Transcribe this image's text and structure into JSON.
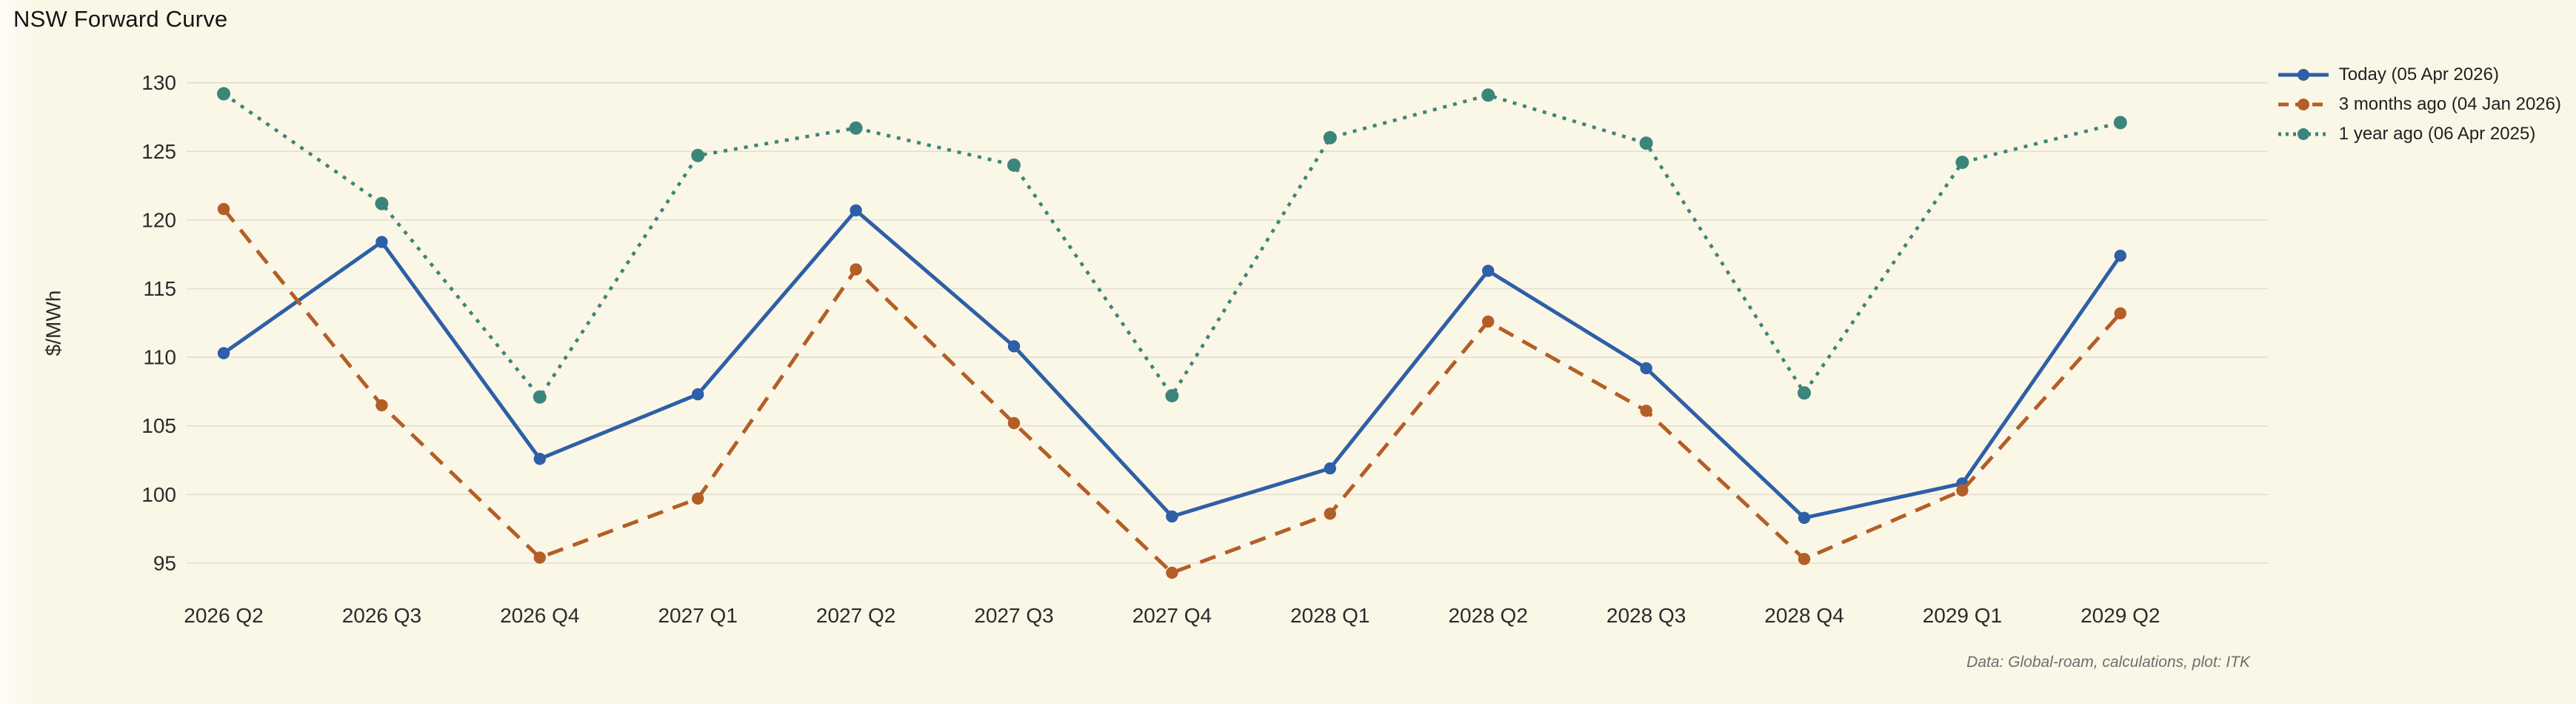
{
  "title": "NSW Forward Curve",
  "caption": "Data: Global-roam, calculations, plot: ITK",
  "colors": {
    "background": "#fbf7e7",
    "gridline": "#e2dfd2",
    "title_text": "#151515",
    "tick_text": "#2b2b2b",
    "caption_text": "#6e6e6e",
    "series_today": "#2e5fa7",
    "series_3mo": "#b45e27",
    "series_1yr": "#3c857a"
  },
  "chart_data": {
    "type": "line",
    "title": "NSW Forward Curve",
    "xlabel": "",
    "ylabel": "$/MWh",
    "ylim": [
      93,
      131
    ],
    "yticks": [
      95,
      100,
      105,
      110,
      115,
      120,
      125,
      130
    ],
    "grid": "horizontal",
    "legend_position": "top-right",
    "categories": [
      "2026 Q2",
      "2026 Q3",
      "2026 Q4",
      "2027 Q1",
      "2027 Q2",
      "2027 Q3",
      "2027 Q4",
      "2028 Q1",
      "2028 Q2",
      "2028 Q3",
      "2028 Q4",
      "2029 Q1",
      "2029 Q2"
    ],
    "series": [
      {
        "name": "Today (05 Apr 2026)",
        "style": "solid",
        "color": "#2e5fa7",
        "values": [
          110.3,
          118.4,
          102.6,
          107.3,
          120.7,
          110.8,
          98.4,
          101.9,
          116.3,
          109.2,
          98.3,
          100.8,
          117.4
        ]
      },
      {
        "name": "3 months ago (04 Jan 2026)",
        "style": "dashed",
        "color": "#b45e27",
        "values": [
          120.8,
          106.5,
          95.4,
          99.7,
          116.4,
          105.2,
          94.3,
          98.6,
          112.6,
          106.1,
          95.3,
          100.3,
          113.2
        ]
      },
      {
        "name": "1 year ago (06 Apr 2025)",
        "style": "dotted",
        "color": "#3c857a",
        "values": [
          129.2,
          121.2,
          107.1,
          124.7,
          126.7,
          124.0,
          107.2,
          126.0,
          129.1,
          125.6,
          107.4,
          124.2,
          127.1
        ]
      }
    ]
  }
}
